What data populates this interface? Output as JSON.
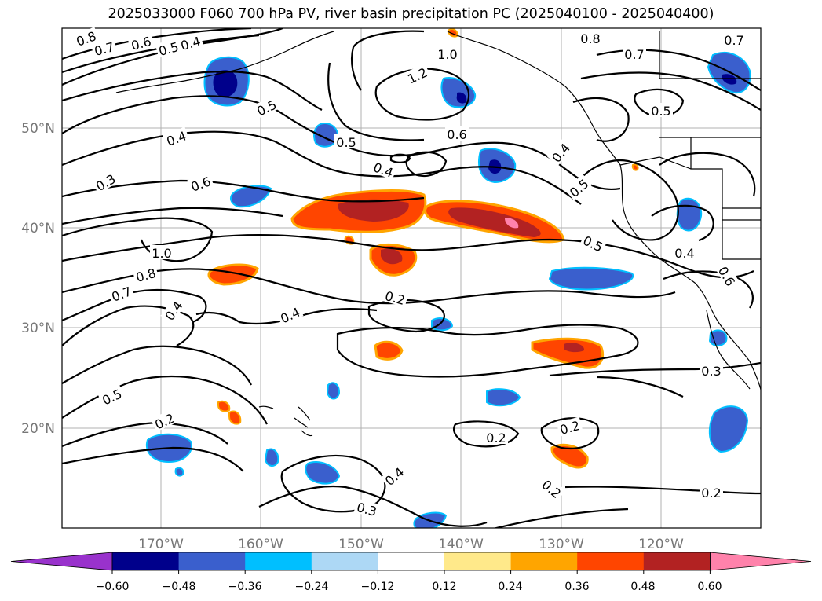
{
  "title": "2025033000 F060 700 hPa PV, river basin precipitation PC (2025040100 - 2025040400)",
  "lon_ticks": [
    "170°W",
    "160°W",
    "150°W",
    "140°W",
    "130°W",
    "120°W"
  ],
  "lat_ticks": [
    "50°N",
    "40°N",
    "30°N",
    "20°N"
  ],
  "colorbar": {
    "ticks": [
      "−0.60",
      "−0.48",
      "−0.36",
      "−0.24",
      "−0.12",
      "0.12",
      "0.24",
      "0.36",
      "0.48",
      "0.60"
    ],
    "colors": [
      "#9932cc",
      "#00008b",
      "#3a5fcd",
      "#00bfff",
      "#add8f5",
      "#ffffff",
      "#ffe98a",
      "#ffa500",
      "#ff4500",
      "#b22222",
      "#ff82ab"
    ]
  },
  "contour_labels": [
    {
      "text": "0.8"
    },
    {
      "text": "0.7"
    },
    {
      "text": "0.6"
    },
    {
      "text": "0.5"
    },
    {
      "text": "0.4"
    },
    {
      "text": "1.0"
    },
    {
      "text": "1.2"
    },
    {
      "text": "0.8"
    },
    {
      "text": "0.7"
    },
    {
      "text": "0.7"
    },
    {
      "text": "0.5"
    },
    {
      "text": "0.5"
    },
    {
      "text": "0.5"
    },
    {
      "text": "0.6"
    },
    {
      "text": "0.4"
    },
    {
      "text": "0.4"
    },
    {
      "text": "0.4"
    },
    {
      "text": "0.3"
    },
    {
      "text": "0.6"
    },
    {
      "text": "0.5"
    },
    {
      "text": "1.0"
    },
    {
      "text": "0.8"
    },
    {
      "text": "0.7"
    },
    {
      "text": "0.5"
    },
    {
      "text": "0.4"
    },
    {
      "text": "0.2"
    },
    {
      "text": "0.4"
    },
    {
      "text": "0.4"
    },
    {
      "text": "0.6"
    },
    {
      "text": "0.3"
    },
    {
      "text": "0.5"
    },
    {
      "text": "0.2"
    },
    {
      "text": "0.2"
    },
    {
      "text": "0.2"
    },
    {
      "text": "0.4"
    },
    {
      "text": "0.2"
    },
    {
      "text": "0.3"
    },
    {
      "text": "0.2"
    }
  ]
}
